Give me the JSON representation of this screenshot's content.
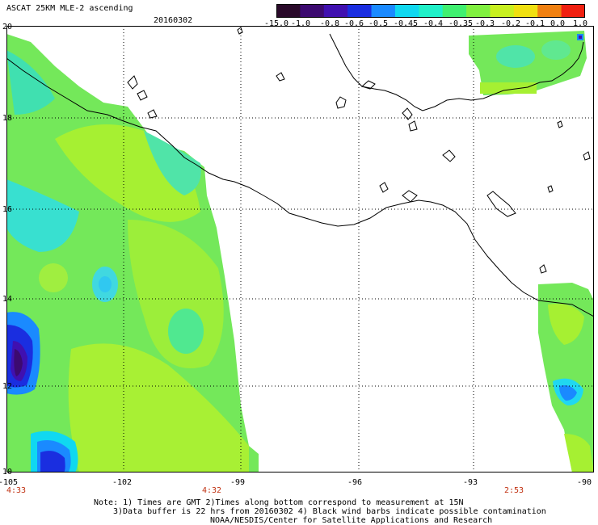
{
  "header": {
    "title": "ASCAT 25KM MLE-2 ascending",
    "date": "20160302"
  },
  "colorbar": {
    "labels": [
      "-15.0",
      "-1.0",
      "-0.8",
      "-0.6",
      "-0.5",
      "-0.45",
      "-0.4",
      "-0.35",
      "-0.3",
      "-0.2",
      "-0.1",
      "0.0",
      "1.0"
    ],
    "colors": [
      "#2a0a2a",
      "#3c0a70",
      "#4010b0",
      "#1a2ee0",
      "#1a8aff",
      "#10d8f0",
      "#20f0c8",
      "#40f070",
      "#80f040",
      "#c8f020",
      "#f0e010",
      "#f08010",
      "#f02010"
    ]
  },
  "map": {
    "x_labels": [
      "-105",
      "-102",
      "-99",
      "-96",
      "-93",
      "-90"
    ],
    "y_labels": [
      "20",
      "18",
      "16",
      "14",
      "12",
      "10"
    ],
    "time_labels": [
      "4:33",
      "4:32",
      "2:53"
    ]
  },
  "footer": {
    "line1": "Note: 1) Times are GMT 2)Times along bottom correspond to measurement at 15N",
    "line2": "3)Data buffer is 22 hrs from 20160302 4) Black wind barbs indicate possible contamination",
    "line3": "NOAA/NESDIS/Center for Satellite Applications and Research"
  },
  "colors": {
    "land_line": "#000000",
    "grid": "#000000",
    "time_label": "#c03010"
  }
}
